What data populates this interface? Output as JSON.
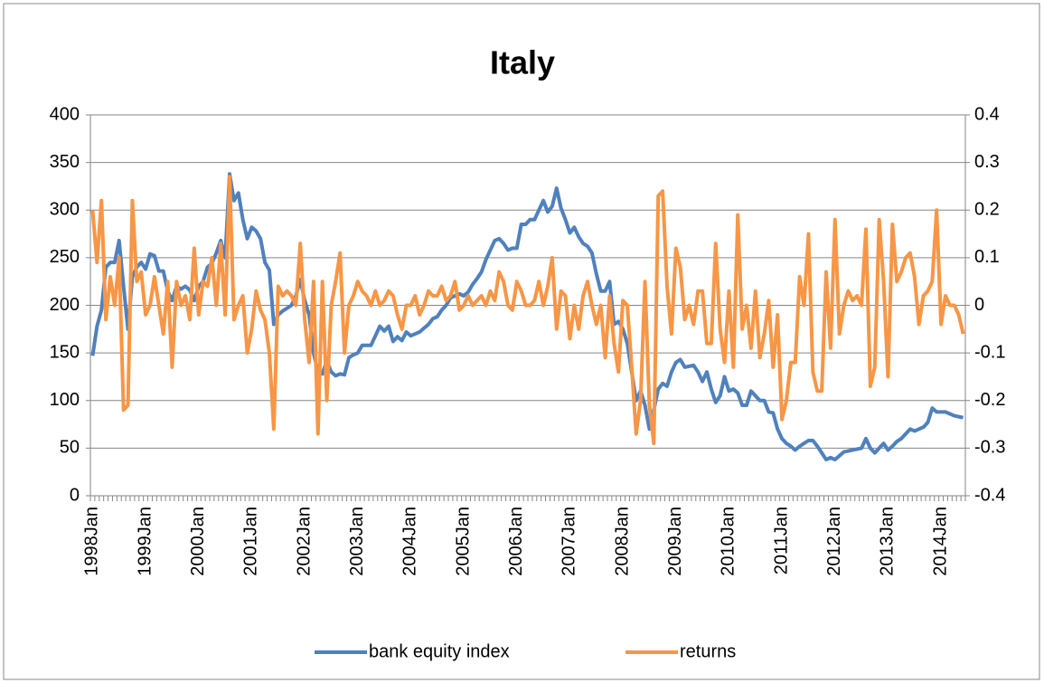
{
  "chart_data": {
    "type": "line",
    "title": "Italy",
    "categories": [
      "1998Jan",
      null,
      null,
      null,
      null,
      null,
      null,
      null,
      null,
      null,
      null,
      null,
      "1999Jan",
      null,
      null,
      null,
      null,
      null,
      null,
      null,
      null,
      null,
      null,
      null,
      "2000Jan",
      null,
      null,
      null,
      null,
      null,
      null,
      null,
      null,
      null,
      null,
      null,
      "2001Jan",
      null,
      null,
      null,
      null,
      null,
      null,
      null,
      null,
      null,
      null,
      null,
      "2002Jan",
      null,
      null,
      null,
      null,
      null,
      null,
      null,
      null,
      null,
      null,
      null,
      "2003Jan",
      null,
      null,
      null,
      null,
      null,
      null,
      null,
      null,
      null,
      null,
      null,
      "2004Jan",
      null,
      null,
      null,
      null,
      null,
      null,
      null,
      null,
      null,
      null,
      null,
      "2005Jan",
      null,
      null,
      null,
      null,
      null,
      null,
      null,
      null,
      null,
      null,
      null,
      "2006Jan",
      null,
      null,
      null,
      null,
      null,
      null,
      null,
      null,
      null,
      null,
      null,
      "2007Jan",
      null,
      null,
      null,
      null,
      null,
      null,
      null,
      null,
      null,
      null,
      null,
      "2008Jan",
      null,
      null,
      null,
      null,
      null,
      null,
      null,
      null,
      null,
      null,
      null,
      "2009Jan",
      null,
      null,
      null,
      null,
      null,
      null,
      null,
      null,
      null,
      null,
      null,
      "2010Jan",
      null,
      null,
      null,
      null,
      null,
      null,
      null,
      null,
      null,
      null,
      null,
      "2011Jan",
      null,
      null,
      null,
      null,
      null,
      null,
      null,
      null,
      null,
      null,
      null,
      "2012Jan",
      null,
      null,
      null,
      null,
      null,
      null,
      null,
      null,
      null,
      null,
      null,
      "2013Jan",
      null,
      null,
      null,
      null,
      null,
      null,
      null,
      null,
      null,
      null,
      null,
      "2014Jan",
      null,
      null,
      null,
      null,
      null
    ],
    "series": [
      {
        "name": "bank equity index",
        "color": "#4f81bd",
        "values": [
          147,
          178,
          195,
          240,
          245,
          245,
          268,
          220,
          175,
          230,
          240,
          245,
          238,
          254,
          252,
          236,
          236,
          215,
          205,
          220,
          217,
          220,
          216,
          205,
          220,
          225,
          240,
          244,
          255,
          268,
          250,
          338,
          310,
          318,
          290,
          270,
          282,
          278,
          270,
          245,
          237,
          180,
          190,
          194,
          197,
          200,
          210,
          227,
          205,
          190,
          150,
          130,
          128,
          142,
          130,
          126,
          128,
          127,
          145,
          148,
          150,
          158,
          158,
          158,
          168,
          178,
          173,
          178,
          162,
          167,
          163,
          172,
          168,
          170,
          172,
          176,
          180,
          186,
          188,
          195,
          200,
          208,
          210,
          212,
          210,
          214,
          222,
          228,
          235,
          248,
          258,
          268,
          270,
          265,
          258,
          260,
          260,
          285,
          285,
          290,
          290,
          300,
          310,
          298,
          304,
          323,
          302,
          290,
          276,
          282,
          272,
          265,
          262,
          255,
          233,
          215,
          215,
          225,
          180,
          183,
          175,
          160,
          130,
          100,
          110,
          95,
          70,
          90,
          112,
          118,
          115,
          130,
          140,
          143,
          135,
          136,
          137,
          130,
          120,
          130,
          112,
          98,
          105,
          125,
          110,
          112,
          108,
          95,
          95,
          110,
          105,
          100,
          100,
          88,
          87,
          70,
          60,
          55,
          52,
          48,
          52,
          55,
          58,
          58,
          52,
          45,
          38,
          40,
          38,
          42,
          46,
          47,
          48,
          49,
          50,
          60,
          50,
          45,
          50,
          55,
          48,
          52,
          57,
          60,
          65,
          70,
          68,
          70,
          72,
          77,
          92,
          88,
          88,
          88,
          86,
          84,
          83,
          82
        ]
      },
      {
        "name": "returns",
        "color": "#f79646",
        "axis": "y2",
        "values": [
          0.2,
          0.09,
          0.22,
          -0.03,
          0.06,
          0.0,
          0.1,
          -0.22,
          -0.21,
          0.22,
          0.05,
          0.07,
          -0.02,
          0.0,
          0.06,
          0.0,
          -0.06,
          0.05,
          -0.13,
          0.05,
          0.0,
          0.02,
          -0.03,
          0.12,
          -0.02,
          0.05,
          0.04,
          0.1,
          0.0,
          0.13,
          -0.02,
          0.27,
          -0.03,
          0.0,
          0.02,
          -0.1,
          -0.05,
          0.03,
          -0.01,
          -0.03,
          -0.1,
          -0.26,
          0.04,
          0.02,
          0.03,
          0.02,
          0.0,
          0.13,
          -0.03,
          -0.12,
          0.05,
          -0.27,
          0.05,
          -0.2,
          0.0,
          0.05,
          0.11,
          -0.1,
          0.0,
          0.02,
          0.05,
          0.03,
          0.02,
          0.0,
          0.03,
          0.0,
          0.01,
          0.03,
          0.02,
          -0.02,
          -0.05,
          0.0,
          0.0,
          0.02,
          -0.02,
          0.0,
          0.03,
          0.02,
          0.02,
          0.04,
          0.01,
          0.02,
          0.05,
          -0.01,
          0.0,
          0.02,
          0.0,
          0.01,
          0.02,
          0.0,
          0.03,
          0.01,
          0.07,
          0.05,
          0.0,
          -0.01,
          0.05,
          0.03,
          0.0,
          0.0,
          0.01,
          0.05,
          0.0,
          0.04,
          0.1,
          -0.05,
          0.03,
          0.02,
          -0.07,
          0.0,
          -0.05,
          0.02,
          0.05,
          0.0,
          -0.04,
          0.0,
          -0.11,
          0.02,
          -0.08,
          -0.14,
          0.01,
          0.0,
          -0.13,
          -0.27,
          -0.2,
          0.05,
          -0.21,
          -0.29,
          0.23,
          0.24,
          0.04,
          -0.06,
          0.12,
          0.08,
          -0.03,
          0.0,
          -0.04,
          0.03,
          0.03,
          -0.08,
          -0.08,
          0.13,
          -0.05,
          -0.12,
          0.03,
          -0.13,
          0.19,
          -0.05,
          0.0,
          -0.09,
          0.03,
          -0.11,
          -0.06,
          0.01,
          -0.13,
          -0.02,
          -0.24,
          -0.2,
          -0.12,
          -0.12,
          0.06,
          0.0,
          0.15,
          -0.14,
          -0.18,
          -0.18,
          0.07,
          -0.09,
          0.18,
          -0.06,
          0.0,
          0.03,
          0.01,
          0.02,
          0.0,
          0.16,
          -0.17,
          -0.13,
          0.18,
          0.05,
          -0.15,
          0.17,
          0.05,
          0.07,
          0.1,
          0.11,
          0.06,
          -0.04,
          0.02,
          0.03,
          0.05,
          0.2,
          -0.04,
          0.02,
          0.0,
          0.0,
          -0.02,
          -0.06
        ]
      }
    ],
    "ylim": [
      0,
      400
    ],
    "yticks": [
      0,
      50,
      100,
      150,
      200,
      250,
      300,
      350,
      400
    ],
    "y2lim": [
      -0.4,
      0.4
    ],
    "y2ticks": [
      -0.4,
      -0.3,
      -0.2,
      -0.1,
      0,
      0.1,
      0.2,
      0.3,
      0.4
    ],
    "grid": true,
    "legend": "bottom"
  }
}
